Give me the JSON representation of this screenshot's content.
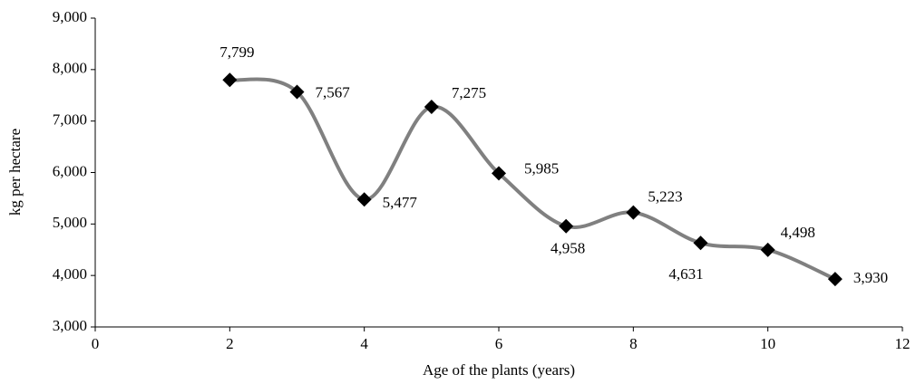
{
  "chart_data": {
    "type": "line",
    "x_label": "Age of the plants (years)",
    "y_label": "kg per hectare",
    "x": [
      2,
      3,
      4,
      5,
      6,
      7,
      8,
      9,
      10,
      11
    ],
    "values": [
      7799,
      7567,
      5477,
      7275,
      5985,
      4958,
      5223,
      4631,
      4498,
      3930
    ],
    "value_labels": [
      "7,799",
      "7,567",
      "5,477",
      "7,275",
      "5,985",
      "4,958",
      "5,223",
      "4,631",
      "4,498",
      "3,930"
    ],
    "color": "#808080",
    "marker_color": "#000000",
    "xlim": [
      0,
      12
    ],
    "xticks": [
      0,
      2,
      4,
      6,
      8,
      10,
      12
    ],
    "ylim": [
      3000,
      9000
    ],
    "yticks": [
      {
        "value": 3000,
        "label": "3,000"
      },
      {
        "value": 4000,
        "label": "4,000"
      },
      {
        "value": 5000,
        "label": "5,000"
      },
      {
        "value": 6000,
        "label": "6,000"
      },
      {
        "value": 7000,
        "label": "7,000"
      },
      {
        "value": 8000,
        "label": "8,000"
      },
      {
        "value": 9000,
        "label": "9,000"
      }
    ]
  }
}
